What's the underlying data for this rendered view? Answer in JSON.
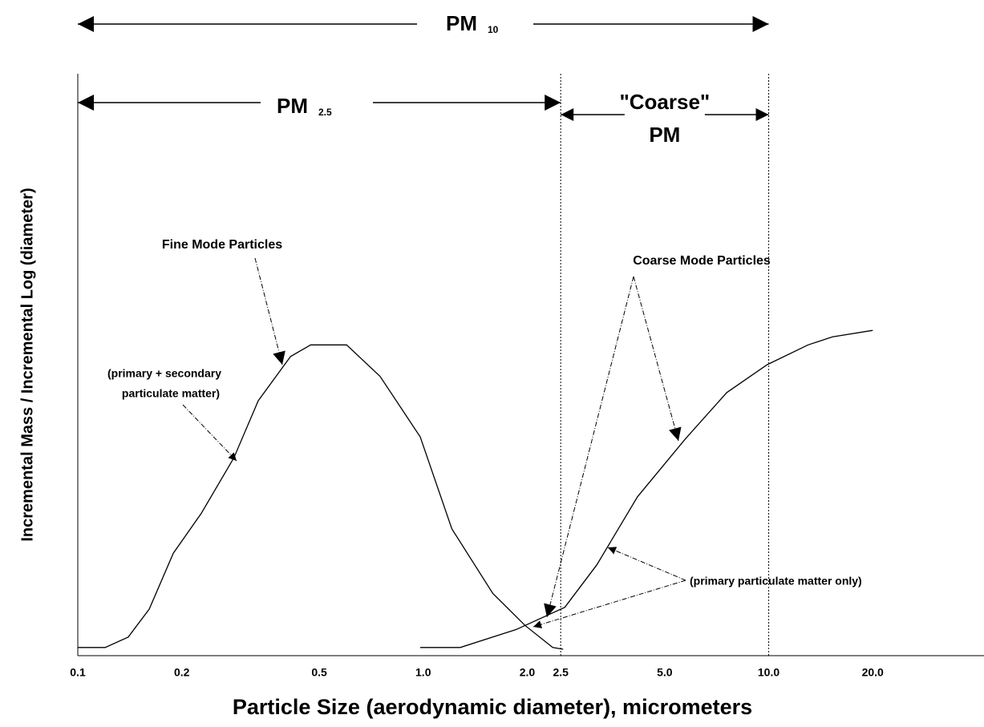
{
  "chart_data": {
    "type": "line",
    "x_log": true,
    "xlabel": "Particle Size (aerodynamic diameter),  micrometers",
    "ylabel": "Incremental Mass / Incremental Log (diameter)",
    "xlim": [
      0.1,
      42
    ],
    "ylim": [
      0,
      100
    ],
    "xticks": [
      0.1,
      0.2,
      0.5,
      {
        "value": 1,
        "label": "1.0"
      },
      {
        "value": 2,
        "label": "2.0"
      },
      2.5,
      {
        "value": 5,
        "label": "5.0"
      },
      {
        "value": 10,
        "label": "10.0"
      },
      {
        "value": 20,
        "label": "20.0"
      }
    ],
    "series": [
      {
        "color": "#000000",
        "x": [
          0.1,
          0.12,
          0.14,
          0.161,
          0.189,
          0.228,
          0.283,
          0.333,
          0.413,
          0.472,
          0.6,
          0.75,
          0.98,
          1.21,
          1.59,
          1.97,
          2.37,
          2.54
        ],
        "values": [
          1.4,
          1.4,
          3.2,
          8,
          17.6,
          24.5,
          34,
          43.8,
          51.4,
          53.4,
          53.4,
          48,
          37.6,
          21.8,
          10.7,
          5.2,
          1.4,
          1.1
        ]
      },
      {
        "color": "#000000",
        "x": [
          0.98,
          1.28,
          1.86,
          2.57,
          3.18,
          4.17,
          5.73,
          7.56,
          9.9,
          13,
          15.3,
          20
        ],
        "values": [
          1.4,
          1.4,
          4.5,
          8.3,
          15.6,
          27.3,
          37.2,
          45.2,
          50,
          53.4,
          54.8,
          55.9
        ]
      }
    ],
    "ranges": [
      {
        "label": "PM",
        "sub": "10",
        "from": 0.1,
        "to": 10
      },
      {
        "label": "PM",
        "sub": "2.5",
        "from": 0.1,
        "to": 2.5
      },
      {
        "label": "\"Coarse\"",
        "label2": "PM",
        "from": 2.5,
        "to": 10
      }
    ],
    "boundaries": [
      2.5,
      10
    ],
    "annotations": {
      "fine": "Fine Mode Particles",
      "fine_note": [
        "(primary + secondary",
        "particulate matter)"
      ],
      "coarse": "Coarse Mode Particles",
      "coarse_note": "(primary particulate matter only)"
    }
  }
}
